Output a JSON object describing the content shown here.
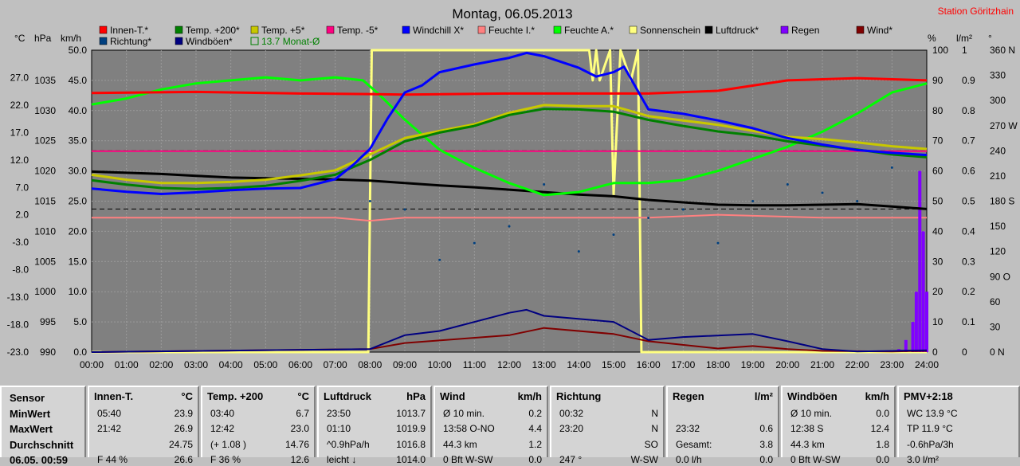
{
  "chart_data": {
    "type": "line",
    "title": "Montag, 06.05.2013",
    "station": "Station Göritzhain",
    "x_ticks": [
      "00:00",
      "01:00",
      "02:00",
      "03:00",
      "04:00",
      "05:00",
      "06:00",
      "07:00",
      "08:00",
      "09:00",
      "10:00",
      "11:00",
      "12:00",
      "13:00",
      "14:00",
      "15:00",
      "16:00",
      "17:00",
      "18:00",
      "19:00",
      "20:00",
      "21:00",
      "22:00",
      "23:00",
      "24:00"
    ],
    "axes": {
      "celsius": {
        "unit": "°C",
        "range": [
          -23,
          32
        ],
        "ticks": [
          "27.0",
          "22.0",
          "17.0",
          "12.0",
          "7.0",
          "2.0",
          "-3.0",
          "-8.0",
          "-13.0",
          "-18.0",
          "-23.0"
        ]
      },
      "hpa": {
        "unit": "hPa",
        "range": [
          990,
          1040
        ],
        "ticks": [
          "1035",
          "1030",
          "1025",
          "1020",
          "1015",
          "1010",
          "1005",
          "1000",
          "995",
          "990"
        ]
      },
      "kmh": {
        "unit": "km/h",
        "range": [
          0,
          50
        ],
        "ticks": [
          "50.0",
          "45.0",
          "40.0",
          "35.0",
          "30.0",
          "25.0",
          "20.0",
          "15.0",
          "10.0",
          "5.0",
          "0.0"
        ]
      },
      "percent": {
        "unit": "%",
        "range": [
          0,
          100
        ],
        "ticks": [
          "100",
          "90",
          "80",
          "70",
          "60",
          "50",
          "40",
          "30",
          "20",
          "10",
          "0"
        ]
      },
      "rain": {
        "unit": "l/m²",
        "range": [
          0,
          1
        ],
        "ticks": [
          "1",
          "0.9",
          "0.8",
          "0.7",
          "0.6",
          "0.5",
          "0.4",
          "0.3",
          "0.2",
          "0.1",
          "0"
        ]
      },
      "degree": {
        "unit": "°",
        "range": [
          0,
          360
        ],
        "ticks": [
          "360 N",
          "330",
          "300",
          "270 W",
          "240",
          "210",
          "180 S",
          "150",
          "120",
          "90 O",
          "60",
          "30",
          "0 N"
        ]
      }
    },
    "legend_row1": [
      {
        "name": "Innen-T.*",
        "color": "#ff0000"
      },
      {
        "name": "Temp. +200*",
        "color": "#008000"
      },
      {
        "name": "Temp. +5*",
        "color": "#c8c800"
      },
      {
        "name": "Temp. -5*",
        "color": "#ff0080"
      },
      {
        "name": "Windchill X*",
        "color": "#0000ff"
      },
      {
        "name": "Feuchte I.*",
        "color": "#ff8080"
      },
      {
        "name": "Feuchte A.*",
        "color": "#00ff00"
      },
      {
        "name": "Sonnenschein",
        "color": "#ffff80"
      },
      {
        "name": "Luftdruck*",
        "color": "#000000"
      },
      {
        "name": "Regen",
        "color": "#8000ff"
      },
      {
        "name": "Wind*",
        "color": "#800000"
      }
    ],
    "legend_row2": [
      {
        "name": "Richtung*",
        "color": "#004080"
      },
      {
        "name": "Windböen*",
        "color": "#000080"
      },
      {
        "name": "13.7 Monat-Ø",
        "color": "#008000"
      }
    ],
    "series": [
      {
        "name": "Innen-T.*",
        "axis": "celsius",
        "x": [
          0,
          3,
          6,
          8,
          9,
          12,
          16,
          18,
          20,
          22,
          24
        ],
        "y": [
          24.2,
          24.4,
          24.1,
          24.0,
          23.9,
          24.1,
          24.1,
          24.6,
          26.5,
          26.9,
          26.5
        ]
      },
      {
        "name": "Temp. +200*",
        "axis": "celsius",
        "x": [
          0,
          1,
          2,
          3,
          4,
          5,
          6,
          7,
          8,
          9,
          10,
          11,
          12,
          13,
          14,
          15,
          16,
          17,
          18,
          19,
          20,
          21,
          22,
          23,
          24
        ],
        "y": [
          8.3,
          7.5,
          6.9,
          6.7,
          6.9,
          7.3,
          8.2,
          9.3,
          12.0,
          15.4,
          17.0,
          18.2,
          20.2,
          21.3,
          21.2,
          20.8,
          19.3,
          18.2,
          17.2,
          16.5,
          15.4,
          14.6,
          13.9,
          13.0,
          12.5
        ]
      },
      {
        "name": "Temp. +5*",
        "axis": "celsius",
        "x": [
          0,
          1,
          2,
          3,
          4,
          5,
          6,
          7,
          8,
          9,
          10,
          11,
          12,
          13,
          14,
          15,
          16,
          17,
          18,
          19,
          20,
          21,
          22,
          23,
          24
        ],
        "y": [
          9.3,
          8.4,
          7.8,
          7.8,
          8.0,
          8.4,
          9.2,
          10.1,
          13.0,
          16.0,
          17.3,
          18.5,
          20.6,
          22.0,
          21.8,
          21.8,
          20.0,
          19.2,
          18.4,
          17.3,
          16.2,
          15.8,
          15.2,
          14.5,
          14.0
        ]
      },
      {
        "name": "Windchill X*",
        "axis": "celsius",
        "x": [
          0,
          1,
          2,
          3,
          4,
          5,
          6,
          7,
          7.5,
          8,
          8.5,
          9,
          9.5,
          10,
          11,
          12,
          12.5,
          13,
          14,
          14.5,
          15,
          15.3,
          16,
          17,
          18,
          19,
          20,
          21,
          22,
          23,
          24
        ],
        "y": [
          6.8,
          6.2,
          5.8,
          6.1,
          6.5,
          6.8,
          6.9,
          8.5,
          11,
          14.0,
          19.5,
          24.3,
          25.6,
          28.0,
          29.4,
          30.6,
          31.5,
          30.9,
          28.8,
          27.2,
          28.0,
          29.0,
          21.2,
          20.4,
          19.2,
          17.8,
          16.0,
          14.8,
          13.8,
          13.3,
          12.9
        ]
      },
      {
        "name": "Temp. -5*",
        "axis": "celsius",
        "x": [
          0,
          24
        ],
        "y": [
          13.6,
          13.6
        ]
      },
      {
        "name": "Luftdruck*",
        "axis": "hpa",
        "x": [
          0,
          1,
          2,
          3,
          4,
          5,
          6,
          7,
          8,
          9,
          10,
          11,
          12,
          13,
          14,
          15,
          16,
          17,
          18,
          19,
          20,
          21,
          22,
          23,
          24
        ],
        "y": [
          1019.9,
          1019.7,
          1019.5,
          1019.2,
          1018.9,
          1018.8,
          1018.7,
          1018.6,
          1018.4,
          1018.0,
          1017.6,
          1017.3,
          1016.9,
          1016.5,
          1016.1,
          1015.8,
          1015.2,
          1014.8,
          1014.4,
          1014.3,
          1014.3,
          1014.4,
          1014.5,
          1014.1,
          1013.7
        ]
      },
      {
        "name": "Feuchte I.*",
        "axis": "percent",
        "x": [
          0,
          7,
          8,
          9,
          12,
          16,
          18,
          21,
          24
        ],
        "y": [
          44.5,
          44.5,
          43.5,
          44.5,
          44.5,
          44.5,
          45.5,
          44.5,
          44.5
        ]
      },
      {
        "name": "Feuchte A.*",
        "axis": "percent",
        "x": [
          0,
          1,
          2,
          3,
          4,
          5,
          6,
          7,
          7.8,
          8.2,
          9,
          10,
          11,
          12,
          13,
          14,
          15,
          16,
          17,
          18,
          19,
          20,
          21,
          22,
          23,
          24
        ],
        "y": [
          82,
          84,
          87,
          89,
          90,
          91,
          90,
          91,
          90,
          86,
          77,
          67,
          61,
          56,
          52,
          53,
          56,
          56,
          57,
          60,
          64,
          68,
          73,
          79,
          86,
          89
        ]
      },
      {
        "name": "Sonnenschein",
        "axis": "percent",
        "x": [
          0,
          7.95,
          8.05,
          14.3,
          14.4,
          14.5,
          14.6,
          14.9,
          15.0,
          15.2,
          15.5,
          15.7,
          15.8,
          24
        ],
        "y": [
          0,
          0,
          100,
          100,
          90,
          100,
          90,
          100,
          52,
          100,
          90,
          100,
          0,
          0
        ]
      },
      {
        "name": "Wind*",
        "axis": "kmh",
        "x": [
          0,
          8,
          9,
          12,
          13,
          15,
          16,
          18,
          19,
          20,
          21,
          23,
          24
        ],
        "y": [
          0,
          0.5,
          1.5,
          2.8,
          4.0,
          3.0,
          1.8,
          0.6,
          1.0,
          0.5,
          0.2,
          0.1,
          0.2
        ]
      },
      {
        "name": "Windböen*",
        "axis": "kmh",
        "x": [
          0,
          8,
          9,
          10,
          12,
          12.5,
          13,
          15,
          16,
          17,
          19,
          20,
          21,
          22,
          23,
          24
        ],
        "y": [
          0,
          0.5,
          2.8,
          3.5,
          6.5,
          7.0,
          6.0,
          5.0,
          2.0,
          2.5,
          3.0,
          1.8,
          0.5,
          0.1,
          0.2,
          0.3
        ]
      },
      {
        "name": "Regen",
        "axis": "rain",
        "x": [
          23.2,
          23.4,
          23.6,
          23.7,
          23.8,
          23.9,
          24
        ],
        "y": [
          0.01,
          0.04,
          0.1,
          0.2,
          0.6,
          0.4,
          0.2
        ]
      },
      {
        "name": "Richtung*",
        "axis": "degree",
        "x": [
          8,
          9,
          10,
          11,
          12,
          13,
          14,
          15,
          16,
          17,
          18,
          19,
          20,
          21,
          22,
          23
        ],
        "y": [
          180,
          170,
          110,
          130,
          150,
          200,
          120,
          140,
          160,
          170,
          130,
          180,
          200,
          190,
          180,
          220
        ]
      }
    ],
    "reference_lines": [
      {
        "name": "13.7 Monat-Ø",
        "axis": "celsius",
        "y": 13.7,
        "style": "dashed"
      },
      {
        "axis": "hpa",
        "y": 1013.7,
        "style": "dashed"
      }
    ]
  },
  "stats": {
    "row_labels": [
      "Sensor",
      "MinWert",
      "MaxWert",
      "Durchschnitt",
      "06.05. 00:59"
    ],
    "panels": [
      {
        "head": "Innen-T.",
        "unit": "°C",
        "rows": [
          [
            "05:40",
            "23.9"
          ],
          [
            "21:42",
            "26.9"
          ],
          [
            "",
            "24.75"
          ],
          [
            "F 44 %",
            "26.6"
          ]
        ]
      },
      {
        "head": "Temp. +200",
        "unit": "°C",
        "rows": [
          [
            "03:40",
            "6.7"
          ],
          [
            "12:42",
            "23.0"
          ],
          [
            "(+ 1.08 )",
            "14.76"
          ],
          [
            "F 36 %",
            "12.6"
          ]
        ]
      },
      {
        "head": "Luftdruck",
        "unit": "hPa",
        "rows": [
          [
            "23:50",
            "1013.7"
          ],
          [
            "01:10",
            "1019.9"
          ],
          [
            "^0.9hPa/h",
            "1016.8"
          ],
          [
            "leicht ↓",
            "1014.0"
          ]
        ]
      },
      {
        "head": "Wind",
        "unit": "km/h",
        "rows": [
          [
            "Ø 10 min.",
            "0.2"
          ],
          [
            "13:58   O-NO",
            "4.4"
          ],
          [
            "44.3 km",
            "1.2"
          ],
          [
            "0 Bft  W-SW",
            "0.0"
          ]
        ]
      },
      {
        "head": "Richtung",
        "unit": "",
        "rows": [
          [
            "00:32",
            "N"
          ],
          [
            "23:20",
            "N"
          ],
          [
            "",
            "SO"
          ],
          [
            "247 °",
            "W-SW"
          ]
        ]
      },
      {
        "head": "Regen",
        "unit": "l/m²",
        "rows": [
          [
            "",
            "",
            ""
          ],
          [
            "23:32",
            "0.6"
          ],
          [
            "Gesamt:",
            "3.8"
          ],
          [
            "0.0 l/h",
            "0.0"
          ]
        ]
      },
      {
        "head": "Windböen",
        "unit": "km/h",
        "rows": [
          [
            "Ø 10 min.",
            "0.0"
          ],
          [
            "12:38   S",
            "12.4"
          ],
          [
            "44.3 km",
            "1.8"
          ],
          [
            "0 Bft W-SW",
            "0.0"
          ]
        ]
      },
      {
        "head": "PMV+2:18",
        "unit": "",
        "rows": [
          [
            "WC 13.9 °C",
            ""
          ],
          [
            "TP 11.9 °C",
            ""
          ],
          [
            "-0.6hPa/3h",
            ""
          ],
          [
            "3.0 l/m²",
            ""
          ]
        ]
      }
    ]
  }
}
